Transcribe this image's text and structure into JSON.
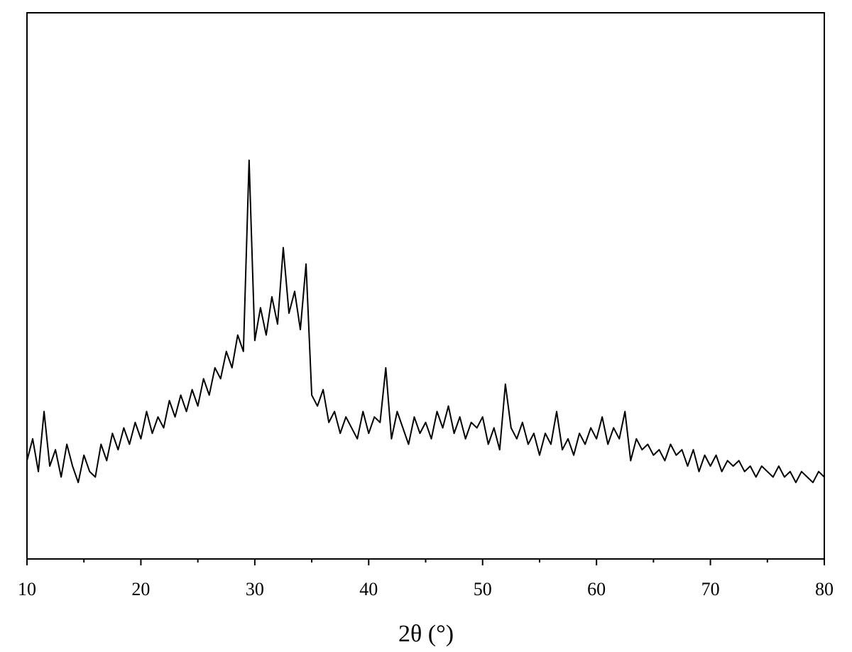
{
  "chart_data": {
    "type": "line",
    "xlabel": "2θ (°)",
    "xlim": [
      10,
      80
    ],
    "ylim": [
      0,
      100
    ],
    "xticks": [
      10,
      20,
      30,
      40,
      50,
      60,
      70,
      80
    ],
    "xminor_ticks": [
      15,
      25,
      35,
      45,
      55,
      65,
      75
    ],
    "color": "#000000",
    "x": [
      10,
      10.5,
      11,
      11.5,
      12,
      12.5,
      13,
      13.5,
      14,
      14.5,
      15,
      15.5,
      16,
      16.5,
      17,
      17.5,
      18,
      18.5,
      19,
      19.5,
      20,
      20.5,
      21,
      21.5,
      22,
      22.5,
      23,
      23.5,
      24,
      24.5,
      25,
      25.5,
      26,
      26.5,
      27,
      27.5,
      28,
      28.5,
      29,
      29.5,
      30,
      30.5,
      31,
      31.5,
      32,
      32.5,
      33,
      33.5,
      34,
      34.5,
      35,
      35.5,
      36,
      36.5,
      37,
      37.5,
      38,
      38.5,
      39,
      39.5,
      40,
      40.5,
      41,
      41.5,
      42,
      42.5,
      43,
      43.5,
      44,
      44.5,
      45,
      45.5,
      46,
      46.5,
      47,
      47.5,
      48,
      48.5,
      49,
      49.5,
      50,
      50.5,
      51,
      51.5,
      52,
      52.5,
      53,
      53.5,
      54,
      54.5,
      55,
      55.5,
      56,
      56.5,
      57,
      57.5,
      58,
      58.5,
      59,
      59.5,
      60,
      60.5,
      61,
      61.5,
      62,
      62.5,
      63,
      63.5,
      64,
      64.5,
      65,
      65.5,
      66,
      66.5,
      67,
      67.5,
      68,
      68.5,
      69,
      69.5,
      70,
      70.5,
      71,
      71.5,
      72,
      72.5,
      73,
      73.5,
      74,
      74.5,
      75,
      75.5,
      76,
      76.5,
      77,
      77.5,
      78,
      78.5,
      79,
      79.5,
      80
    ],
    "values": [
      18,
      22,
      16,
      27,
      17,
      20,
      15,
      21,
      17,
      14,
      19,
      16,
      15,
      21,
      18,
      23,
      20,
      24,
      21,
      25,
      22,
      27,
      23,
      26,
      24,
      29,
      26,
      30,
      27,
      31,
      28,
      33,
      30,
      35,
      33,
      38,
      35,
      41,
      38,
      73,
      40,
      46,
      41,
      48,
      43,
      57,
      45,
      49,
      42,
      54,
      30,
      28,
      31,
      25,
      27,
      23,
      26,
      24,
      22,
      27,
      23,
      26,
      25,
      35,
      22,
      27,
      24,
      21,
      26,
      23,
      25,
      22,
      27,
      24,
      28,
      23,
      26,
      22,
      25,
      24,
      26,
      21,
      24,
      20,
      32,
      24,
      22,
      25,
      21,
      23,
      19,
      23,
      21,
      27,
      20,
      22,
      19,
      23,
      21,
      24,
      22,
      26,
      21,
      24,
      22,
      27,
      18,
      22,
      20,
      21,
      19,
      20,
      18,
      21,
      19,
      20,
      17,
      20,
      16,
      19,
      17,
      19,
      16,
      18,
      17,
      18,
      16,
      17,
      15,
      17,
      16,
      15,
      17,
      15,
      16,
      14,
      16,
      15,
      14,
      16,
      15
    ]
  }
}
